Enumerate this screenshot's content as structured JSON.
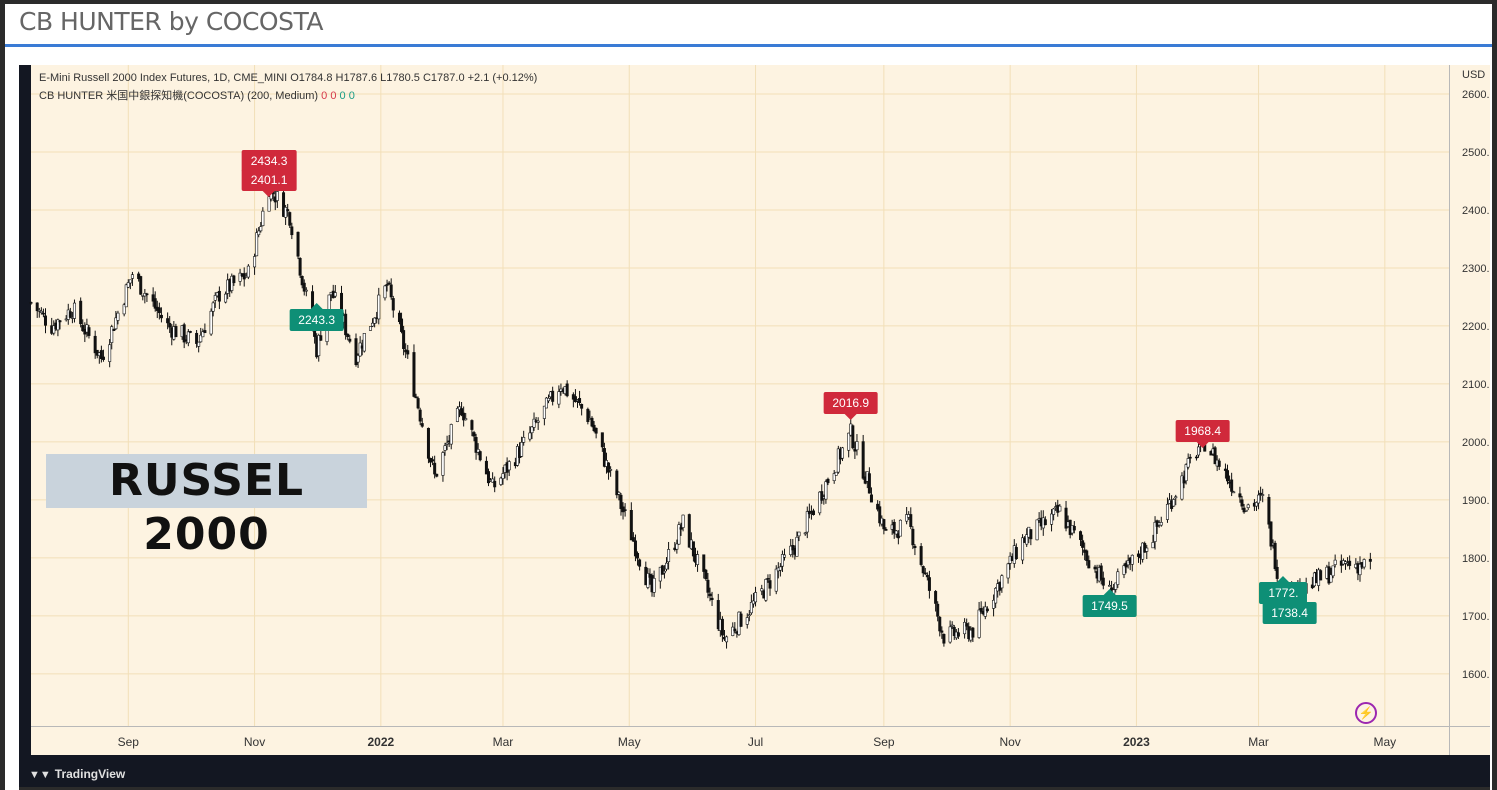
{
  "page": {
    "title": "CB HUNTER by COCOSTA"
  },
  "legend": {
    "line1": "E-Mini Russell 2000 Index Futures, 1D, CME_MINI  O1784.8  H1787.6  L1780.5  C1787.0  +2.1 (+0.12%)",
    "line2_prefix": "CB HUNTER 米国中銀探知機(COCOSTA) (200, Medium)",
    "line2_values": [
      "0",
      "0",
      "0",
      "0"
    ]
  },
  "overlay_label": "RUSSEL 2000",
  "footer": {
    "brand": "TradingView"
  },
  "colors": {
    "background": "#fdf3e1",
    "candle": "#111111",
    "grid": "#f2dfb8",
    "sell_badge": "#d0293b",
    "buy_badge": "#0e8f76",
    "accent": "#3a7bd5"
  },
  "icons": {
    "tv_logo": "tradingview-logo-icon",
    "bolt": "lightning-bolt-icon"
  },
  "chart_data": {
    "type": "candlestick",
    "currency_label": "USD",
    "x_ticks": [
      "Sep",
      "Nov",
      "2022",
      "Mar",
      "May",
      "Jul",
      "Sep",
      "Nov",
      "2023",
      "Mar",
      "May"
    ],
    "x_range": [
      "2021-07-16",
      "2023-06-01"
    ],
    "x_tick_dates": [
      "2021-09-01",
      "2021-11-01",
      "2022-01-01",
      "2022-03-01",
      "2022-05-01",
      "2022-07-01",
      "2022-09-01",
      "2022-11-01",
      "2023-01-01",
      "2023-03-01",
      "2023-05-01"
    ],
    "y_ticks": [
      1600.0,
      1700.0,
      1800.0,
      1900.0,
      2000.0,
      2100.0,
      2200.0,
      2300.0,
      2400.0,
      2500.0,
      2600.0
    ],
    "y_range": [
      1510,
      2650
    ],
    "price_path": [
      [
        "2021-07-16",
        2240
      ],
      [
        "2021-07-26",
        2200
      ],
      [
        "2021-08-05",
        2230
      ],
      [
        "2021-08-19",
        2145
      ],
      [
        "2021-09-03",
        2290
      ],
      [
        "2021-09-20",
        2200
      ],
      [
        "2021-10-04",
        2170
      ],
      [
        "2021-10-15",
        2255
      ],
      [
        "2021-10-29",
        2290
      ],
      [
        "2021-11-08",
        2440
      ],
      [
        "2021-11-18",
        2390
      ],
      [
        "2021-12-01",
        2160
      ],
      [
        "2021-12-08",
        2260
      ],
      [
        "2021-12-20",
        2150
      ],
      [
        "2022-01-04",
        2270
      ],
      [
        "2022-01-14",
        2140
      ],
      [
        "2022-01-27",
        1940
      ],
      [
        "2022-02-09",
        2060
      ],
      [
        "2022-02-24",
        1920
      ],
      [
        "2022-03-10",
        1990
      ],
      [
        "2022-03-29",
        2100
      ],
      [
        "2022-04-12",
        2040
      ],
      [
        "2022-04-28",
        1880
      ],
      [
        "2022-05-12",
        1740
      ],
      [
        "2022-05-27",
        1860
      ],
      [
        "2022-06-16",
        1660
      ],
      [
        "2022-07-01",
        1725
      ],
      [
        "2022-07-20",
        1820
      ],
      [
        "2022-08-16",
        2015
      ],
      [
        "2022-09-02",
        1840
      ],
      [
        "2022-09-13",
        1860
      ],
      [
        "2022-09-30",
        1665
      ],
      [
        "2022-10-14",
        1675
      ],
      [
        "2022-11-07",
        1830
      ],
      [
        "2022-11-25",
        1880
      ],
      [
        "2022-12-19",
        1740
      ],
      [
        "2023-01-09",
        1840
      ],
      [
        "2023-02-02",
        2005
      ],
      [
        "2023-02-23",
        1890
      ],
      [
        "2023-03-03",
        1900
      ],
      [
        "2023-03-13",
        1730
      ],
      [
        "2023-03-24",
        1750
      ],
      [
        "2023-04-12",
        1790
      ],
      [
        "2023-04-24",
        1787
      ]
    ],
    "signals": [
      {
        "type": "sell",
        "label": "2434.3",
        "date": "2021-11-08",
        "price": 2434.3
      },
      {
        "type": "sell",
        "label": "2401.1",
        "date": "2021-11-08",
        "price": 2401.1
      },
      {
        "type": "buy",
        "label": "2243.3",
        "date": "2021-12-01",
        "price": 2243.3
      },
      {
        "type": "sell",
        "label": "2016.9",
        "date": "2022-08-16",
        "price": 2016.9
      },
      {
        "type": "buy",
        "label": "1749.5",
        "date": "2022-12-19",
        "price": 1749.5
      },
      {
        "type": "sell",
        "label": "1968.4",
        "date": "2023-02-02",
        "price": 1968.4
      },
      {
        "type": "buy",
        "label": "1772.",
        "date": "2023-03-13",
        "price": 1772.0
      },
      {
        "type": "buy",
        "label": "1738.4",
        "date": "2023-03-16",
        "price": 1738.4
      }
    ]
  }
}
